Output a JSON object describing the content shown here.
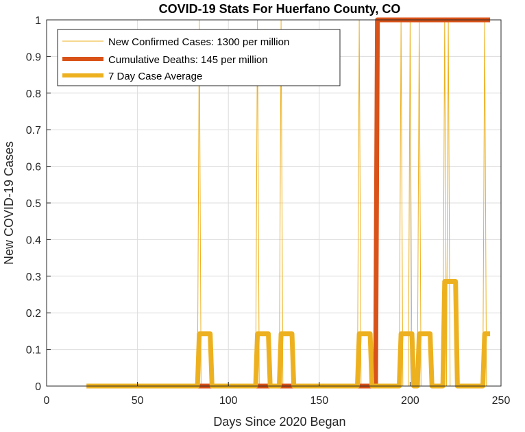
{
  "chart_data": {
    "type": "line",
    "title": "COVID-19 Stats For Huerfano County, CO",
    "xlabel": "Days Since 2020 Began",
    "ylabel": "New COVID-19 Cases",
    "xlim": [
      0,
      250
    ],
    "ylim": [
      0,
      1
    ],
    "xticks": [
      0,
      50,
      100,
      150,
      200,
      250
    ],
    "yticks": [
      0,
      0.1,
      0.2,
      0.3,
      0.4,
      0.5,
      0.6,
      0.7,
      0.8,
      0.9,
      1
    ],
    "grid": true,
    "legend_position": "top-left",
    "series": [
      {
        "name": "New Confirmed Cases: 1300 per million",
        "color": "#EDB120",
        "style": "thin",
        "x": [
          22,
          83,
          84,
          85,
          115,
          116,
          117,
          128,
          129,
          130,
          171,
          172,
          173,
          194,
          195,
          196,
          199,
          200,
          201,
          204,
          205,
          206,
          218,
          219,
          220,
          221,
          222,
          240,
          241,
          242,
          244
        ],
        "y": [
          0,
          0,
          1,
          0,
          0,
          1,
          0,
          0,
          1,
          0,
          0,
          1,
          0,
          0,
          1,
          0,
          0,
          1,
          0,
          0,
          1,
          0,
          0,
          1,
          0,
          1,
          0,
          0,
          1,
          0,
          0
        ]
      },
      {
        "name": "Cumulative Deaths: 145 per million",
        "color": "#D95319",
        "style": "thick",
        "x": [
          22,
          181,
          182,
          244
        ],
        "y": [
          0,
          0,
          1,
          1
        ]
      },
      {
        "name": "7 Day Case Average",
        "color": "#EDB120",
        "style": "thick",
        "x": [
          22,
          83,
          84,
          90,
          91,
          115,
          116,
          122,
          123,
          128,
          129,
          135,
          136,
          171,
          172,
          178,
          179,
          194,
          195,
          201,
          202,
          204,
          205,
          211,
          212,
          218,
          219,
          225,
          226,
          240,
          241,
          244
        ],
        "y": [
          0,
          0,
          0.1429,
          0.1429,
          0,
          0,
          0.1429,
          0.1429,
          0,
          0,
          0.1429,
          0.1429,
          0,
          0,
          0.1429,
          0.1429,
          0,
          0,
          0.1429,
          0.1429,
          0,
          0,
          0.1429,
          0.1429,
          0,
          0,
          0.2857,
          0.2857,
          0,
          0,
          0.1429,
          0.1429
        ]
      }
    ]
  }
}
